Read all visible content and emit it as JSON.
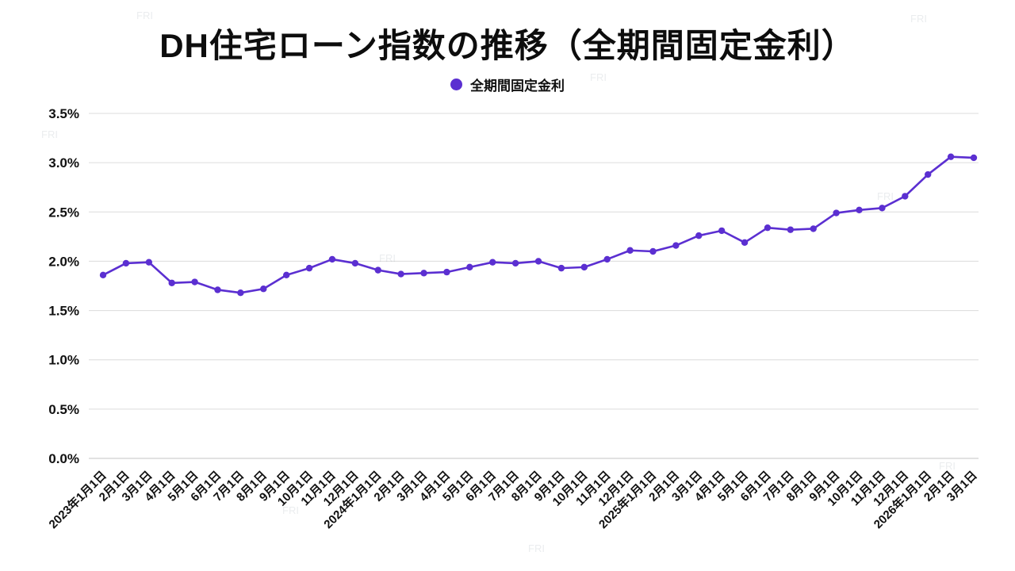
{
  "header": {
    "title": "DH住宅ローン指数の推移（全期間固定金利）"
  },
  "legend": {
    "label": "全期間固定金利"
  },
  "watermark": {
    "text": "FRI"
  },
  "chart_data": {
    "type": "line",
    "title": "DH住宅ローン指数の推移（全期間固定金利）",
    "series_name": "全期間固定金利",
    "categories": [
      "2023年1月1日",
      "2月1日",
      "3月1日",
      "4月1日",
      "5月1日",
      "6月1日",
      "7月1日",
      "8月1日",
      "9月1日",
      "10月1日",
      "11月1日",
      "12月1日",
      "2024年1月1日",
      "2月1日",
      "3月1日",
      "4月1日",
      "5月1日",
      "6月1日",
      "7月1日",
      "8月1日",
      "9月1日",
      "10月1日",
      "11月1日",
      "12月1日",
      "2025年1月1日",
      "2月1日",
      "3月1日",
      "4月1日",
      "5月1日",
      "6月1日",
      "7月1日",
      "8月1日",
      "9月1日",
      "10月1日",
      "11月1日",
      "12月1日",
      "2026年1月1日",
      "2月1日",
      "3月1日"
    ],
    "values": [
      1.86,
      1.98,
      1.99,
      1.78,
      1.79,
      1.71,
      1.68,
      1.72,
      1.86,
      1.93,
      2.02,
      1.98,
      1.91,
      1.87,
      1.88,
      1.89,
      1.94,
      1.99,
      1.98,
      2.0,
      1.93,
      1.94,
      2.02,
      2.11,
      2.1,
      2.16,
      2.26,
      2.31,
      2.19,
      2.34,
      2.32,
      2.33,
      2.49,
      2.52,
      2.54,
      2.66,
      2.88,
      3.06,
      3.05
    ],
    "ylim": [
      0,
      3.5
    ],
    "ytick_step": 0.5,
    "yticks": [
      "0.0%",
      "0.5%",
      "1.0%",
      "1.5%",
      "2.0%",
      "2.5%",
      "3.0%",
      "3.5%"
    ],
    "grid": true,
    "legend_position": "top",
    "line_color": "#5b2fd1"
  }
}
